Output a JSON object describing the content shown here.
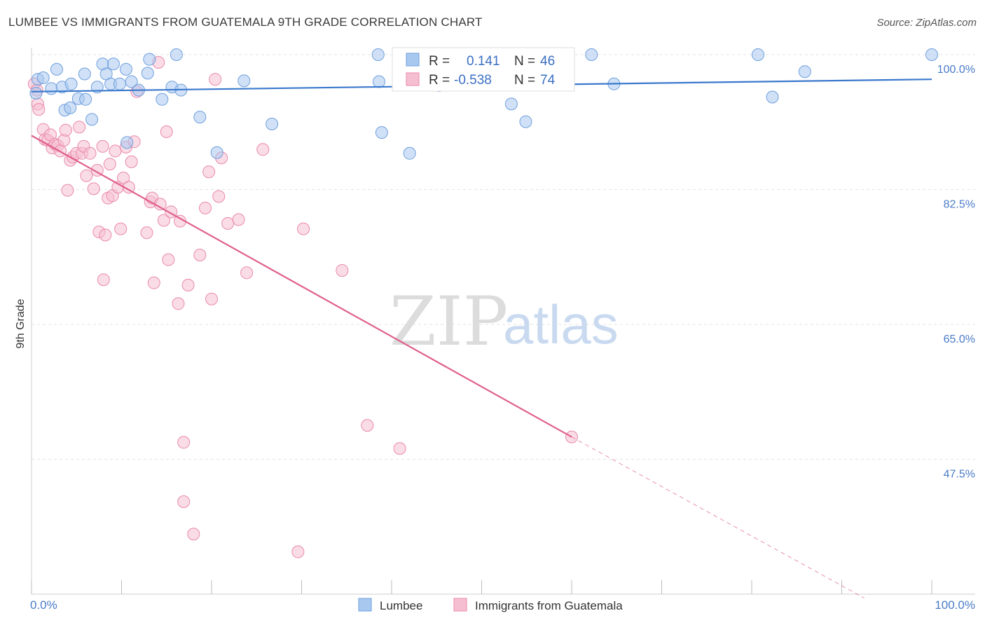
{
  "title": "LUMBEE VS IMMIGRANTS FROM GUATEMALA 9TH GRADE CORRELATION CHART",
  "source": "Source: ZipAtlas.com",
  "watermark": {
    "zip": "ZIP",
    "atlas": "atlas"
  },
  "legend_box": {
    "rows": [
      {
        "r_label": "R =",
        "r_value": "0.141",
        "n_label": "N =",
        "n_value": "46"
      },
      {
        "r_label": "R =",
        "r_value": "-0.538",
        "n_label": "N =",
        "n_value": "74"
      }
    ]
  },
  "colors": {
    "lumbee_fill": "#a9c8f0",
    "lumbee_stroke": "#6f9fdc",
    "lumbee_line": "#3a78cc",
    "guat_fill": "#f6bfd1",
    "guat_stroke": "#e98aaa",
    "guat_line": "#e0608e",
    "grid": "#e3e3e3",
    "axis_text": "#4a7bc8"
  },
  "chart_data": {
    "type": "scatter",
    "xlabel": "",
    "ylabel": "9th Grade",
    "xlim": [
      0,
      100
    ],
    "ylim": [
      30,
      100
    ],
    "x_tick_labels": [
      "0.0%",
      "100.0%"
    ],
    "y_tick_labels": [
      "100.0%",
      "82.5%",
      "65.0%",
      "47.5%"
    ],
    "y_tick_values": [
      100,
      82.5,
      65,
      47.5
    ],
    "grid": true,
    "legend_position": "bottom",
    "series": [
      {
        "name": "Lumbee",
        "r": 0.141,
        "n": 46,
        "trend": {
          "x": [
            0,
            100
          ],
          "y": [
            95.2,
            96.8
          ]
        },
        "points": [
          [
            0.5,
            95.0
          ],
          [
            0.7,
            96.8
          ],
          [
            1.3,
            97.0
          ],
          [
            2.2,
            95.6
          ],
          [
            2.8,
            98.1
          ],
          [
            3.4,
            95.8
          ],
          [
            3.7,
            92.8
          ],
          [
            4.3,
            93.1
          ],
          [
            4.4,
            96.2
          ],
          [
            5.2,
            94.3
          ],
          [
            6.0,
            94.2
          ],
          [
            5.9,
            97.5
          ],
          [
            6.7,
            91.6
          ],
          [
            7.3,
            95.8
          ],
          [
            7.9,
            98.8
          ],
          [
            8.3,
            97.5
          ],
          [
            8.8,
            96.2
          ],
          [
            9.1,
            98.8
          ],
          [
            9.8,
            96.2
          ],
          [
            10.5,
            98.1
          ],
          [
            11.1,
            96.5
          ],
          [
            11.9,
            95.4
          ],
          [
            12.9,
            97.6
          ],
          [
            13.1,
            99.4
          ],
          [
            14.5,
            94.2
          ],
          [
            15.6,
            95.8
          ],
          [
            16.1,
            100.0
          ],
          [
            16.6,
            95.4
          ],
          [
            18.7,
            91.9
          ],
          [
            20.6,
            87.3
          ],
          [
            10.6,
            88.6
          ],
          [
            26.7,
            91.0
          ],
          [
            38.5,
            100.0
          ],
          [
            38.9,
            89.9
          ],
          [
            42.0,
            87.2
          ],
          [
            53.3,
            93.6
          ],
          [
            54.9,
            91.3
          ],
          [
            62.2,
            100.0
          ],
          [
            64.7,
            96.2
          ],
          [
            80.7,
            100.0
          ],
          [
            82.3,
            94.5
          ],
          [
            85.9,
            97.8
          ],
          [
            100.0,
            100.0
          ],
          [
            38.6,
            96.5
          ],
          [
            45.3,
            96.0
          ],
          [
            23.6,
            96.6
          ]
        ]
      },
      {
        "name": "Immigrants from Guatemala",
        "r": -0.538,
        "n": 74,
        "trend": {
          "x": [
            0,
            60
          ],
          "y": [
            89.5,
            50.4
          ]
        },
        "trend_dashed": {
          "x": [
            60,
            92.5
          ],
          "y": [
            50.4,
            29.5
          ]
        },
        "points": [
          [
            0.3,
            96.2
          ],
          [
            0.6,
            95.4
          ],
          [
            0.7,
            93.6
          ],
          [
            0.8,
            92.9
          ],
          [
            1.3,
            90.3
          ],
          [
            1.5,
            89.0
          ],
          [
            1.8,
            88.9
          ],
          [
            2.1,
            89.6
          ],
          [
            2.3,
            87.9
          ],
          [
            2.6,
            88.4
          ],
          [
            2.9,
            88.2
          ],
          [
            3.2,
            87.5
          ],
          [
            3.6,
            88.9
          ],
          [
            3.8,
            90.2
          ],
          [
            4.0,
            82.4
          ],
          [
            4.3,
            86.3
          ],
          [
            4.6,
            86.7
          ],
          [
            5.0,
            87.2
          ],
          [
            5.3,
            90.6
          ],
          [
            5.6,
            87.2
          ],
          [
            5.8,
            88.1
          ],
          [
            6.1,
            84.3
          ],
          [
            6.5,
            87.2
          ],
          [
            6.9,
            82.6
          ],
          [
            7.3,
            85.0
          ],
          [
            7.5,
            77.0
          ],
          [
            7.9,
            88.1
          ],
          [
            8.2,
            76.6
          ],
          [
            8.5,
            81.4
          ],
          [
            8.7,
            85.8
          ],
          [
            9.0,
            81.7
          ],
          [
            9.3,
            87.5
          ],
          [
            9.6,
            82.8
          ],
          [
            9.9,
            77.4
          ],
          [
            10.2,
            84.0
          ],
          [
            10.5,
            88.0
          ],
          [
            10.8,
            82.8
          ],
          [
            11.1,
            86.1
          ],
          [
            11.4,
            88.7
          ],
          [
            11.7,
            95.2
          ],
          [
            12.8,
            76.9
          ],
          [
            13.2,
            80.9
          ],
          [
            13.4,
            81.4
          ],
          [
            13.6,
            70.4
          ],
          [
            14.1,
            99.0
          ],
          [
            14.3,
            80.6
          ],
          [
            14.7,
            78.5
          ],
          [
            15.0,
            90.0
          ],
          [
            15.2,
            73.4
          ],
          [
            15.5,
            79.6
          ],
          [
            16.3,
            67.7
          ],
          [
            16.5,
            78.4
          ],
          [
            17.4,
            70.1
          ],
          [
            18.7,
            74.0
          ],
          [
            19.3,
            80.1
          ],
          [
            19.7,
            84.8
          ],
          [
            20.0,
            68.3
          ],
          [
            20.4,
            96.8
          ],
          [
            20.8,
            81.6
          ],
          [
            21.1,
            86.6
          ],
          [
            21.8,
            78.1
          ],
          [
            23.0,
            78.6
          ],
          [
            23.9,
            71.7
          ],
          [
            25.7,
            87.7
          ],
          [
            8.0,
            70.8
          ],
          [
            16.9,
            49.7
          ],
          [
            16.9,
            42.0
          ],
          [
            18.0,
            37.8
          ],
          [
            30.2,
            77.4
          ],
          [
            34.5,
            72.0
          ],
          [
            37.3,
            51.9
          ],
          [
            40.9,
            48.9
          ],
          [
            60.0,
            50.4
          ],
          [
            29.6,
            35.5
          ]
        ]
      }
    ]
  }
}
